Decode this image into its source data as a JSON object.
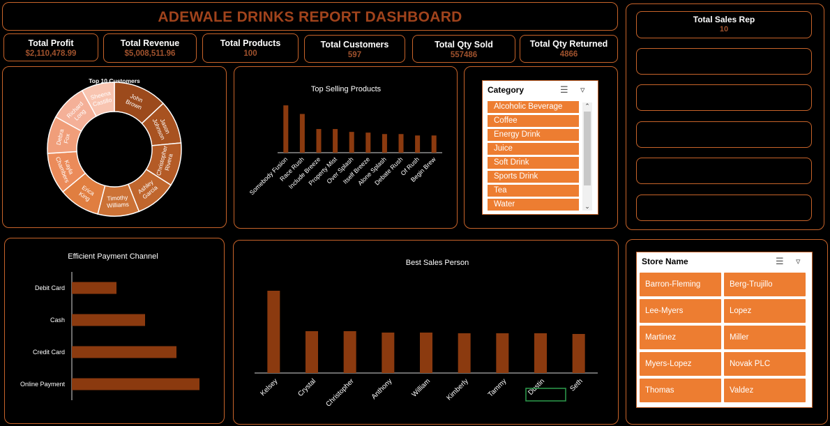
{
  "header": {
    "title": "ADEWALE DRINKS REPORT DASHBOARD"
  },
  "kpis": [
    {
      "label": "Total Profit",
      "value": "$2,110,478.99"
    },
    {
      "label": "Total Revenue",
      "value": "$5,008,511.96"
    },
    {
      "label": "Total Products",
      "value": "100"
    },
    {
      "label": "Total Customers",
      "value": "597"
    },
    {
      "label": "Total Qty Sold",
      "value": "557486"
    },
    {
      "label": "Total Qty Returned",
      "value": "4866"
    }
  ],
  "sales_rep": {
    "label": "Total Sales Rep",
    "value": "10"
  },
  "category_slicer": {
    "title": "Category",
    "items": [
      "Alcoholic Beverage",
      "Coffee",
      "Energy Drink",
      "Juice",
      "Soft Drink",
      "Sports Drink",
      "Tea",
      "Water"
    ]
  },
  "store_slicer": {
    "title": "Store Name",
    "items": [
      "Barron-Fleming",
      "Berg-Trujillo",
      "Lee-Myers",
      "Lopez",
      "Martinez",
      "Miller",
      "Myers-Lopez",
      "Novak PLC",
      "Thomas",
      "Valdez"
    ]
  },
  "colors": {
    "accent": "#c8642a",
    "bar": "#8b3a0f",
    "slicer_item": "#ed7d31",
    "title": "#a0431c"
  },
  "chart_data": [
    {
      "type": "pie",
      "title": "Top 10 Customers",
      "categories": [
        "John Brown",
        "Jason Johnson",
        "Christopher Rivera",
        "Ashley Garcia",
        "Timothy Williams",
        "Erica King",
        "Kayla Chambers",
        "Debra Fox",
        "Richard Long",
        "Sheena Castillo"
      ],
      "values": [
        13,
        10.5,
        10.5,
        10,
        10,
        10,
        10,
        9,
        9,
        8
      ],
      "colors": [
        "#9c4a1c",
        "#a85220",
        "#b45b26",
        "#c0662d",
        "#cc7236",
        "#e07e40",
        "#eb8b5a",
        "#f09e7a",
        "#f4b098",
        "#f8c4b0"
      ]
    },
    {
      "type": "bar",
      "title": "Top Selling Products",
      "categories": [
        "Somebody Fusion",
        "Race Rush",
        "Include Breeze",
        "Property Mist",
        "Over Splash",
        "Itself Breeze",
        "Alone Splash",
        "Debate Rush",
        "Of Rush",
        "Begin Brew"
      ],
      "values": [
        66,
        54,
        33,
        33,
        29,
        28,
        26,
        26,
        24,
        24
      ],
      "ylim": [
        0,
        70
      ]
    },
    {
      "type": "bar",
      "orientation": "horizontal",
      "title": "Efficient Payment Channel",
      "categories": [
        "Debit Card",
        "Cash",
        "Credit Card",
        "Online Payment"
      ],
      "values": [
        64,
        105,
        150,
        183
      ],
      "xlim": [
        0,
        190
      ]
    },
    {
      "type": "bar",
      "title": "Best Sales Person",
      "categories": [
        "Kelsey",
        "Crystal",
        "Christopher",
        "Anthony",
        "William",
        "Kimberly",
        "Tammy",
        "Dustin",
        "Seth"
      ],
      "values": [
        118,
        60,
        60,
        58,
        58,
        57,
        57,
        57,
        56
      ],
      "ylim": [
        0,
        125
      ]
    }
  ]
}
